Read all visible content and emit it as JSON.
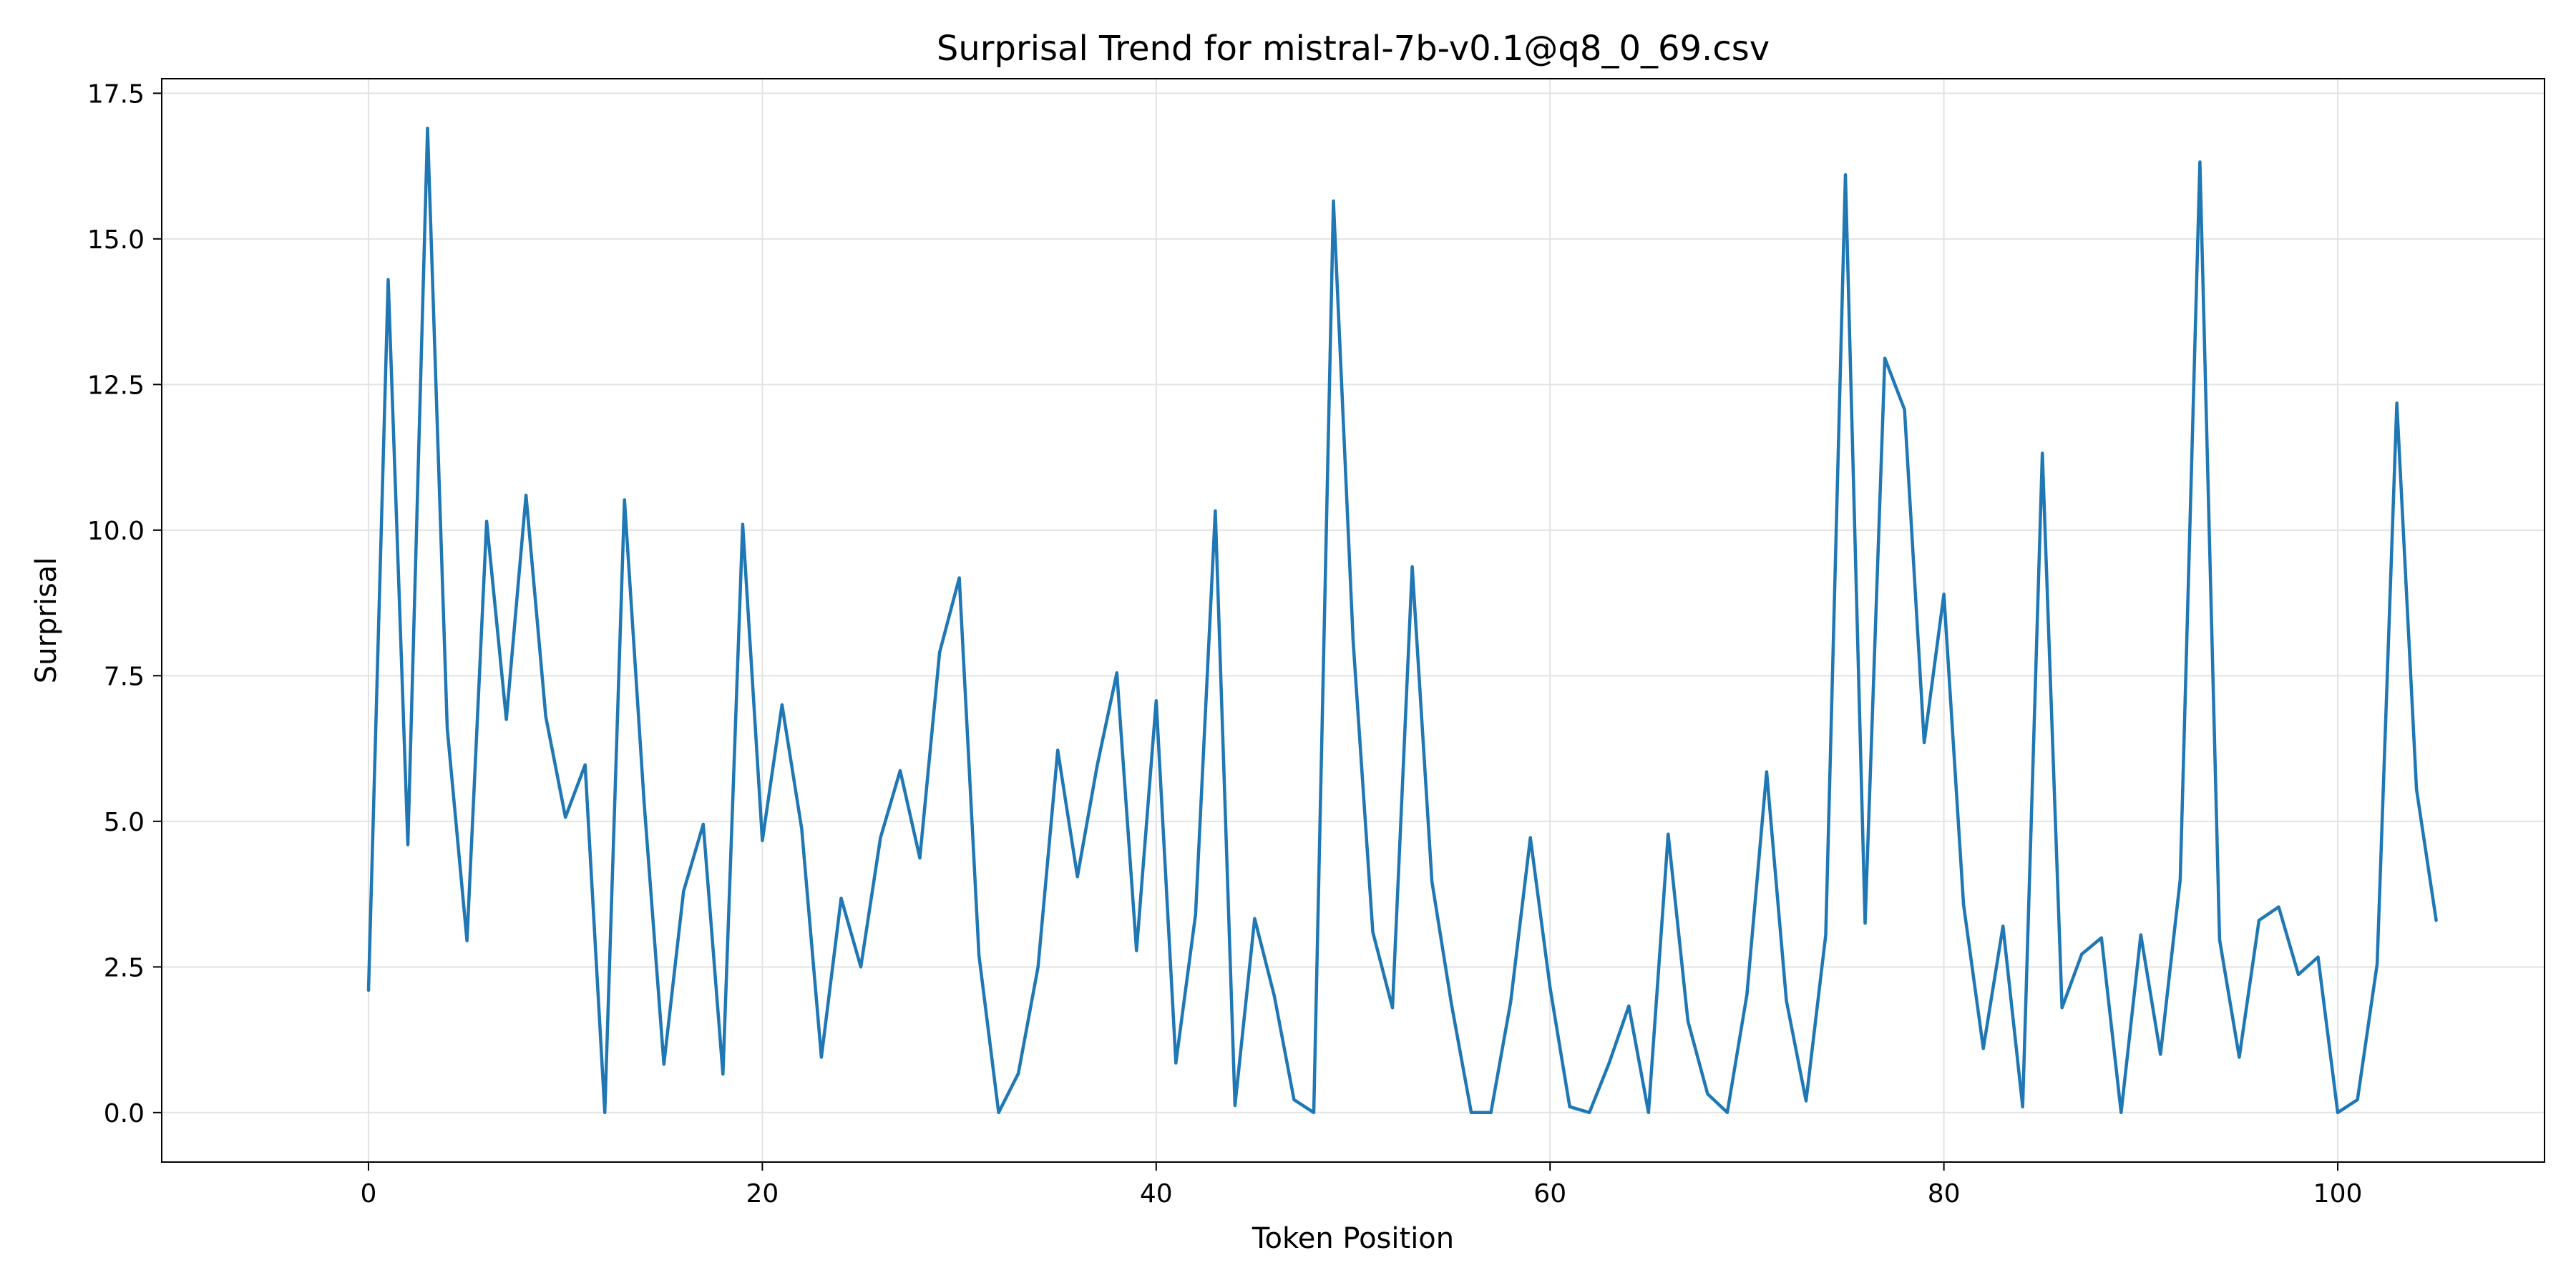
{
  "chart_data": {
    "type": "line",
    "title": "Surprisal Trend for mistral-7b-v0.1@q8_0_69.csv",
    "xlabel": "Token Position",
    "ylabel": "Surprisal",
    "xlim": [
      -10.5,
      110.5
    ],
    "ylim": [
      -0.85,
      17.75
    ],
    "xticks": [
      0,
      20,
      40,
      60,
      80,
      100
    ],
    "xtick_labels": [
      "0",
      "20",
      "40",
      "60",
      "80",
      "100"
    ],
    "yticks": [
      0.0,
      2.5,
      5.0,
      7.5,
      10.0,
      12.5,
      15.0,
      17.5
    ],
    "ytick_labels": [
      "0.0",
      "2.5",
      "5.0",
      "7.5",
      "10.0",
      "12.5",
      "15.0",
      "17.5"
    ],
    "grid": true,
    "line_color": "#1f77b4",
    "series": [
      {
        "x": [
          0,
          1,
          2,
          3,
          4,
          5,
          6,
          7,
          8,
          9,
          10,
          11,
          12,
          13,
          14,
          15,
          16,
          17,
          18,
          19,
          20,
          21,
          22,
          23,
          24,
          25,
          26,
          27,
          28,
          29,
          30,
          31,
          32,
          33,
          34,
          35,
          36,
          37,
          38,
          39,
          40,
          41,
          42,
          43,
          44,
          45,
          46,
          47,
          48,
          49,
          50,
          51,
          52,
          53,
          54,
          55,
          56,
          57,
          58,
          59,
          60,
          61,
          62,
          63,
          64,
          65,
          66,
          67,
          68,
          69,
          70,
          71,
          72,
          73,
          74,
          75,
          76,
          77,
          78,
          79,
          80,
          81,
          82,
          83,
          84,
          85,
          86,
          87,
          88,
          89,
          90,
          91,
          92,
          93,
          94,
          95,
          96,
          97,
          98,
          99,
          100,
          101,
          102,
          103,
          104,
          105
        ],
        "values": [
          2.1,
          14.3,
          4.6,
          16.9,
          6.6,
          2.95,
          10.15,
          6.75,
          10.6,
          6.8,
          5.07,
          5.97,
          0.0,
          10.52,
          5.3,
          0.83,
          3.8,
          4.95,
          0.66,
          10.1,
          4.67,
          7.0,
          4.87,
          0.95,
          3.68,
          2.5,
          4.72,
          5.87,
          4.37,
          7.9,
          9.18,
          2.7,
          0.0,
          0.67,
          2.5,
          6.22,
          4.05,
          5.95,
          7.55,
          2.78,
          7.07,
          0.85,
          3.4,
          10.33,
          0.12,
          3.33,
          2.0,
          0.22,
          0.0,
          15.65,
          8.1,
          3.1,
          1.8,
          9.37,
          3.97,
          1.85,
          0.0,
          0.0,
          1.9,
          4.72,
          2.15,
          0.1,
          0.0,
          0.85,
          1.83,
          0.0,
          4.78,
          1.57,
          0.32,
          0.0,
          2.03,
          5.85,
          1.92,
          0.2,
          3.05,
          16.1,
          3.25,
          12.95,
          12.07,
          6.35,
          8.9,
          3.57,
          1.1,
          3.2,
          0.1,
          11.32,
          1.8,
          2.72,
          3.0,
          0.0,
          3.05,
          1.0,
          4.0,
          16.32,
          2.97,
          0.95,
          3.3,
          3.53,
          2.37,
          2.67,
          0.0,
          0.22,
          2.55,
          12.18,
          5.55,
          3.3
        ]
      }
    ]
  }
}
